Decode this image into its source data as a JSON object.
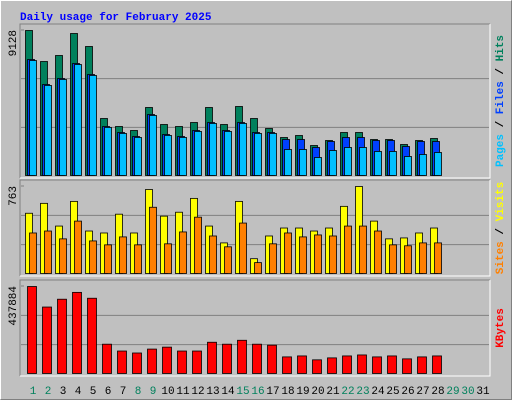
{
  "chart_data": [
    {
      "type": "bar",
      "title": "Daily usage for February 2025",
      "ylim": [
        0,
        9128
      ],
      "yticks": [
        9128
      ],
      "legend_separator": " / ",
      "series": [
        {
          "name": "Hits",
          "color": "#00805c",
          "values": [
            9128,
            7190,
            7565,
            8940,
            8128,
            3626,
            3126,
            2876,
            4314,
            3251,
            3126,
            3376,
            4314,
            3251,
            4377,
            3626,
            3001,
            2438,
            2563,
            1938,
            2251,
            2751,
            2751,
            2313,
            2313,
            2001,
            2251,
            2376,
            null,
            null,
            null
          ]
        },
        {
          "name": "Files",
          "color": "#0040ff",
          "values": [
            7315,
            5752,
            6127,
            7065,
            6377,
            3126,
            2751,
            2501,
            3876,
            2626,
            2501,
            2876,
            3376,
            2876,
            3376,
            2751,
            2751,
            2313,
            2313,
            1813,
            2188,
            2438,
            2438,
            2251,
            2251,
            1876,
            2188,
            2188,
            null,
            null,
            null
          ]
        },
        {
          "name": "Pages",
          "color": "#00c0ff",
          "values": [
            7250,
            5690,
            6065,
            7000,
            6315,
            3065,
            2690,
            2440,
            3815,
            2565,
            2440,
            2815,
            3315,
            2815,
            3315,
            2690,
            2690,
            1688,
            1688,
            1188,
            1625,
            1813,
            1813,
            1563,
            1563,
            1250,
            1375,
            1500,
            null,
            null,
            null
          ]
        }
      ]
    },
    {
      "type": "bar",
      "ylim": [
        0,
        763
      ],
      "yticks": [
        763
      ],
      "legend_separator": " / ",
      "series": [
        {
          "name": "Visits",
          "color": "#ffff00",
          "values": [
            531,
            617,
            420,
            634,
            377,
            360,
            523,
            360,
            737,
            506,
            540,
            660,
            420,
            274,
            634,
            137,
            334,
            403,
            403,
            377,
            403,
            591,
            763,
            463,
            309,
            317,
            360,
            403,
            null,
            null,
            null
          ]
        },
        {
          "name": "Sites",
          "color": "#ff8000",
          "values": [
            360,
            377,
            309,
            463,
            291,
            257,
            326,
            257,
            583,
            266,
            369,
            497,
            334,
            240,
            446,
            103,
            266,
            360,
            326,
            343,
            334,
            420,
            420,
            377,
            257,
            249,
            274,
            274,
            null,
            null,
            null
          ]
        }
      ]
    },
    {
      "type": "bar",
      "ylim": [
        0,
        437884
      ],
      "yticks": [
        437884
      ],
      "categories": [
        "1",
        "2",
        "3",
        "4",
        "5",
        "6",
        "7",
        "8",
        "9",
        "10",
        "11",
        "12",
        "13",
        "14",
        "15",
        "16",
        "17",
        "18",
        "19",
        "20",
        "21",
        "22",
        "23",
        "24",
        "25",
        "26",
        "27",
        "28",
        "29",
        "30",
        "31"
      ],
      "category_colors": [
        "#00805c",
        "#00805c",
        "#000000",
        "#000000",
        "#000000",
        "#000000",
        "#000000",
        "#00805c",
        "#00805c",
        "#000000",
        "#000000",
        "#000000",
        "#000000",
        "#000000",
        "#00805c",
        "#00805c",
        "#000000",
        "#000000",
        "#000000",
        "#000000",
        "#000000",
        "#00805c",
        "#00805c",
        "#000000",
        "#000000",
        "#000000",
        "#000000",
        "#000000",
        "#00805c",
        "#00805c",
        "#000000"
      ],
      "series": [
        {
          "name": "KBytes",
          "color": "#ff0000",
          "values": [
            437884,
            335700,
            374600,
            408700,
            379500,
            150800,
            116800,
            107000,
            126500,
            136200,
            116800,
            116800,
            160500,
            150800,
            170300,
            150800,
            146000,
            87600,
            92400,
            73000,
            82700,
            92400,
            97300,
            87600,
            92400,
            77800,
            87600,
            92400,
            null,
            null,
            null
          ]
        }
      ]
    }
  ]
}
